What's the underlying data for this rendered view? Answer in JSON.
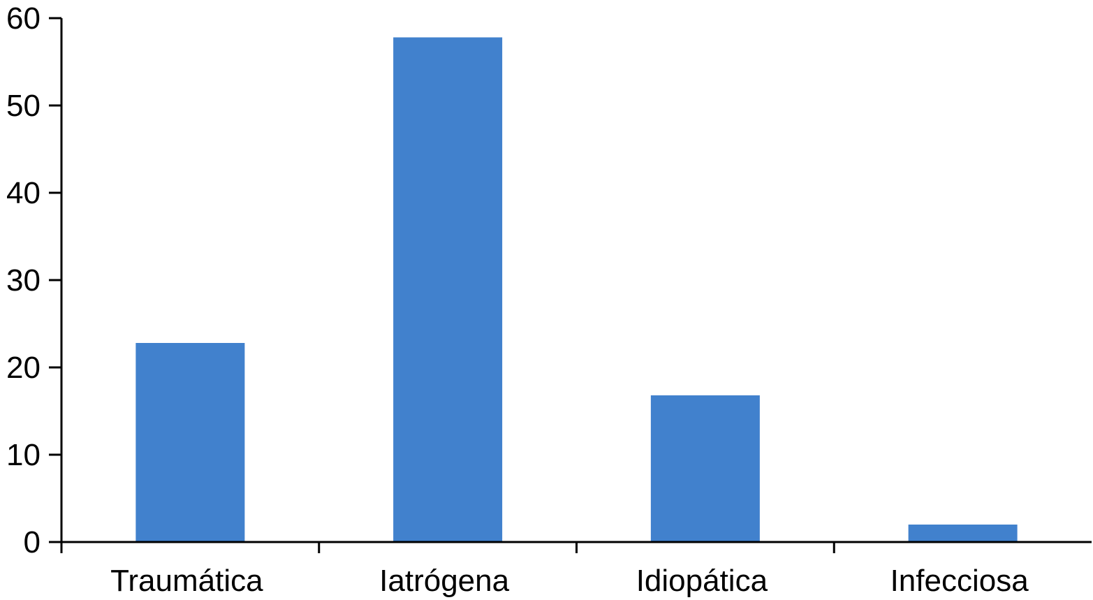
{
  "chart_data": {
    "type": "bar",
    "categories": [
      "Traumática",
      "Iatrógena",
      "Idiopática",
      "Infecciosa"
    ],
    "values": [
      22.8,
      57.8,
      16.8,
      2.0
    ],
    "title": "",
    "xlabel": "",
    "ylabel": "",
    "ylim": [
      0,
      60
    ],
    "yticks": [
      "0",
      "10",
      "20",
      "30",
      "40",
      "50",
      "60"
    ],
    "bar_color": "#4181CD",
    "grid": false,
    "legend": "none"
  }
}
